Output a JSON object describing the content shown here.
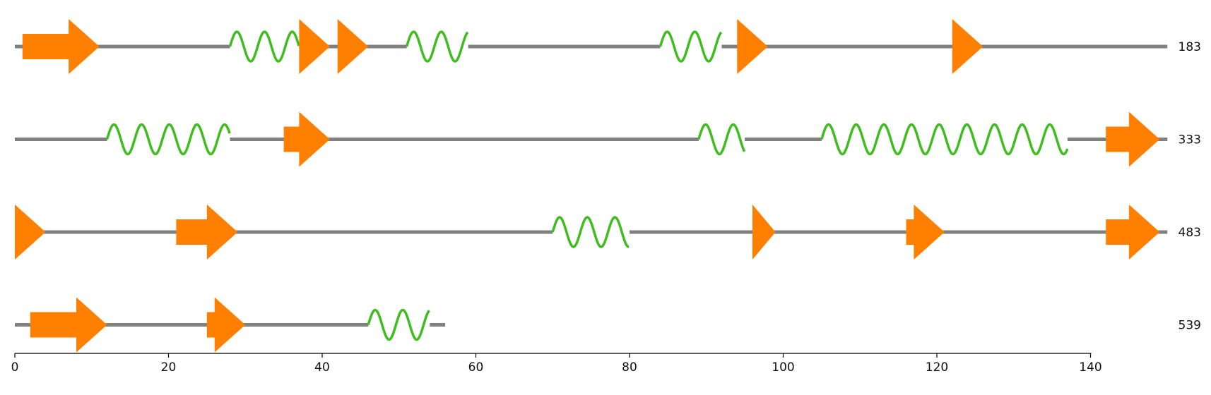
{
  "colors": {
    "coil": "#808080",
    "helix": "#3fbd1f",
    "strand": "#ff8000",
    "axis": "#000000",
    "background": "#ffffff"
  },
  "chart_data": {
    "type": "secondary-structure",
    "title": "",
    "xlabel": "",
    "ylabel": "",
    "xlim": [
      0,
      150
    ],
    "grid": false,
    "legend": "none",
    "x_ticks": [
      0,
      20,
      40,
      60,
      80,
      100,
      120,
      140
    ],
    "rows": [
      {
        "label": "183",
        "length": 150,
        "elements": [
          {
            "type": "strand",
            "start": 1,
            "end": 11
          },
          {
            "type": "helix",
            "start": 28,
            "end": 37
          },
          {
            "type": "strand",
            "start": 37,
            "end": 41
          },
          {
            "type": "strand",
            "start": 42,
            "end": 46
          },
          {
            "type": "helix",
            "start": 51,
            "end": 59
          },
          {
            "type": "helix",
            "start": 84,
            "end": 92
          },
          {
            "type": "strand",
            "start": 94,
            "end": 98
          },
          {
            "type": "strand",
            "start": 122,
            "end": 126
          }
        ]
      },
      {
        "label": "333",
        "length": 150,
        "elements": [
          {
            "type": "helix",
            "start": 12,
            "end": 28
          },
          {
            "type": "strand",
            "start": 35,
            "end": 41
          },
          {
            "type": "helix",
            "start": 89,
            "end": 95
          },
          {
            "type": "helix",
            "start": 105,
            "end": 137
          },
          {
            "type": "strand",
            "start": 142,
            "end": 149
          }
        ]
      },
      {
        "label": "483",
        "length": 150,
        "elements": [
          {
            "type": "strand",
            "start": 0,
            "end": 4
          },
          {
            "type": "strand",
            "start": 21,
            "end": 29
          },
          {
            "type": "helix",
            "start": 70,
            "end": 80
          },
          {
            "type": "strand",
            "start": 96,
            "end": 99
          },
          {
            "type": "strand",
            "start": 116,
            "end": 121
          },
          {
            "type": "strand",
            "start": 142,
            "end": 149
          }
        ]
      },
      {
        "label": "539",
        "length": 56,
        "elements": [
          {
            "type": "strand",
            "start": 2,
            "end": 12
          },
          {
            "type": "strand",
            "start": 25,
            "end": 30
          },
          {
            "type": "helix",
            "start": 46,
            "end": 54
          }
        ]
      }
    ]
  }
}
